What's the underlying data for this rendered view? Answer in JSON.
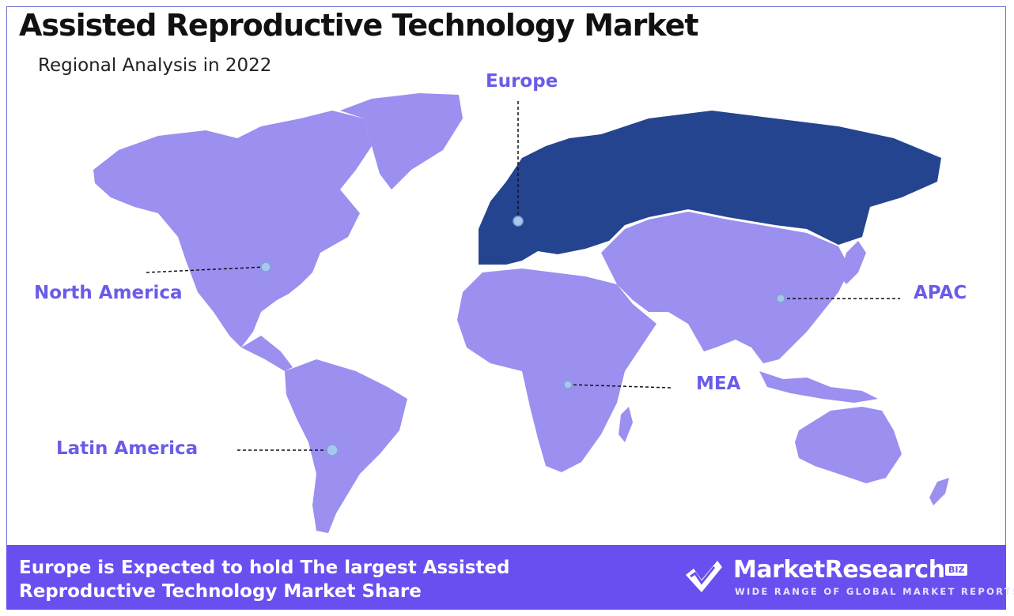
{
  "header": {
    "title": "Assisted Reproductive Technology Market",
    "subtitle": "Regional Analysis in 2022"
  },
  "map": {
    "colors": {
      "highlight": "#25448f",
      "default": "#9b8ff0",
      "label": "#6a5ce8"
    },
    "regions": [
      {
        "id": "north-america",
        "label": "North America",
        "highlighted": false
      },
      {
        "id": "europe",
        "label": "Europe",
        "highlighted": true
      },
      {
        "id": "apac",
        "label": "APAC",
        "highlighted": false
      },
      {
        "id": "mea",
        "label": "MEA",
        "highlighted": false
      },
      {
        "id": "latin-america",
        "label": "Latin America",
        "highlighted": false
      }
    ]
  },
  "footer": {
    "headline": "Europe is Expected to hold The largest Assisted Reproductive Technology Market Share",
    "logo": {
      "name": "MarketResearch",
      "badge": "BIZ",
      "tagline": "WIDE RANGE OF GLOBAL MARKET REPORTS"
    },
    "background": "#6a4ff0"
  }
}
